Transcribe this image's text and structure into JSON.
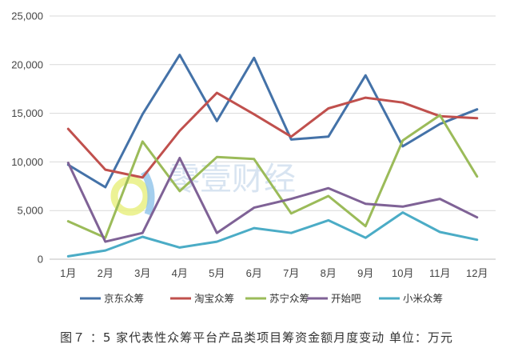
{
  "chart_data": {
    "type": "line",
    "categories": [
      "1月",
      "2月",
      "3月",
      "4月",
      "5月",
      "6月",
      "7月",
      "8月",
      "9月",
      "10月",
      "11月",
      "12月"
    ],
    "ylim": [
      0,
      25000
    ],
    "yticks": [
      0,
      5000,
      10000,
      15000,
      20000,
      25000
    ],
    "ytick_labels": [
      "0",
      "5,000",
      "10,000",
      "15,000",
      "20,000",
      "25,000"
    ],
    "grid": true,
    "legend_position": "bottom",
    "series": [
      {
        "name": "京东众筹",
        "color": "#4472a8",
        "values": [
          9700,
          7400,
          14900,
          21000,
          14200,
          20700,
          12300,
          12600,
          18900,
          11600,
          13900,
          15400
        ]
      },
      {
        "name": "淘宝众筹",
        "color": "#c0504d",
        "values": [
          13400,
          9200,
          8400,
          13200,
          17100,
          14900,
          12600,
          15500,
          16600,
          16100,
          14700,
          14500
        ]
      },
      {
        "name": "苏宁众筹",
        "color": "#9bbb59",
        "values": [
          3900,
          2200,
          12100,
          7000,
          10500,
          10300,
          4700,
          6500,
          3400,
          12200,
          14800,
          8500
        ]
      },
      {
        "name": "开始吧",
        "color": "#7f6296",
        "values": [
          9900,
          1800,
          2700,
          10400,
          2700,
          5300,
          6200,
          7300,
          5700,
          5400,
          6200,
          4300
        ]
      },
      {
        "name": "小米众筹",
        "color": "#4bacc6",
        "values": [
          300,
          900,
          2300,
          1200,
          1800,
          3200,
          2700,
          4000,
          2200,
          4800,
          2800,
          2000
        ]
      }
    ]
  },
  "watermark": {
    "text": "零壹财经"
  },
  "caption": {
    "text": "图７ ：5 家代表性众筹平台产品类项目筹资金额月度变动  单位：万元"
  }
}
